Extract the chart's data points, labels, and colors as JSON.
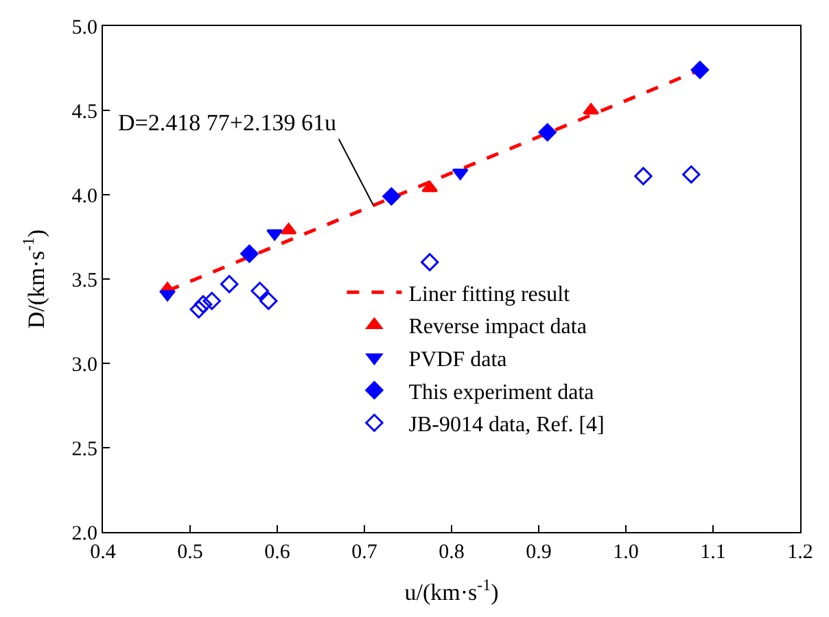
{
  "chart_data": {
    "type": "scatter",
    "xlabel": "u/(km·s$^{-1}$)",
    "ylabel": "D/(km·s$^{-1}$)",
    "xlim": [
      0.4,
      1.2
    ],
    "xticks": [
      0.4,
      0.5,
      0.6,
      0.7,
      0.8,
      0.9,
      {
        "value": 1.0,
        "label": "1.0"
      },
      1.1,
      1.2
    ],
    "ylim": [
      2.0,
      5.0
    ],
    "yticks": [
      {
        "value": 2.0,
        "label": "2.0"
      },
      2.5,
      {
        "value": 3.0,
        "label": "3.0"
      },
      3.5,
      {
        "value": 4.0,
        "label": "4.0"
      },
      4.5,
      {
        "value": 5.0,
        "label": "5.0"
      }
    ],
    "legend": "bottom right",
    "annotations": [
      {
        "text": "D=2.418 77+2.139 61u",
        "x": 0.71,
        "y": 3.94
      }
    ],
    "series": [
      {
        "name": "Liner fitting result",
        "type": "line",
        "line_style": "dashed",
        "marker": "none",
        "color": "#ff0000",
        "x": [
          0.474,
          1.085
        ],
        "values": [
          3.43,
          4.74
        ]
      },
      {
        "name": "Reverse impact data",
        "marker": "triangle",
        "color": "#ff0000",
        "x": [
          0.474,
          0.613,
          0.775,
          0.96
        ],
        "values": [
          3.44,
          3.79,
          4.04,
          4.5
        ]
      },
      {
        "name": "PVDF data",
        "marker": "triangle-down",
        "color": "#0000ff",
        "x": [
          0.474,
          0.597,
          0.81
        ],
        "values": [
          3.41,
          3.77,
          4.13
        ]
      },
      {
        "name": "This experiment data",
        "marker": "diamond",
        "color": "#0000ff",
        "x": [
          0.568,
          0.731,
          0.91,
          1.085
        ],
        "values": [
          3.65,
          3.99,
          4.37,
          4.74
        ]
      },
      {
        "name": "JB-9014 data, Ref. [4]",
        "marker": "diamond-open",
        "color": "#0000ff",
        "x": [
          0.51,
          0.515,
          0.525,
          0.545,
          0.58,
          0.59,
          0.775,
          1.02,
          1.075
        ],
        "values": [
          3.32,
          3.35,
          3.37,
          3.47,
          3.43,
          3.37,
          3.6,
          4.11,
          4.12
        ]
      }
    ]
  }
}
